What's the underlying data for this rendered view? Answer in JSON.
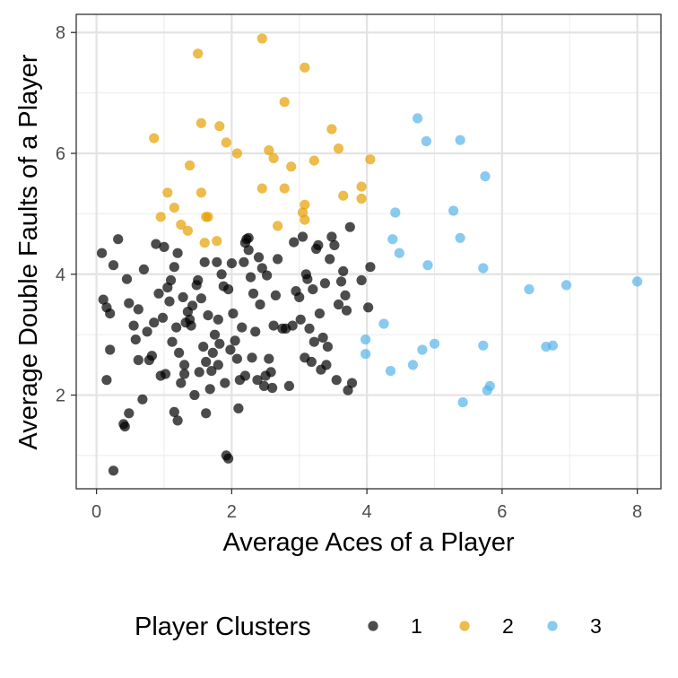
{
  "chart_data": {
    "type": "scatter",
    "title": "",
    "xlabel": "Average Aces of a Player",
    "ylabel": "Average Double Faults of a Player",
    "xlim": [
      -0.3,
      8.35
    ],
    "ylim": [
      0.45,
      8.3
    ],
    "xticks": [
      0,
      2,
      4,
      6,
      8
    ],
    "yticks": [
      2,
      4,
      6,
      8
    ],
    "x_tick_labels": [
      "0",
      "2",
      "4",
      "6",
      "8"
    ],
    "y_tick_labels": [
      "2",
      "4",
      "6",
      "8"
    ],
    "grid": true,
    "legend": {
      "title": "Player Clusters",
      "position": "bottom"
    },
    "series": [
      {
        "name": "1",
        "color": "#000000",
        "points": [
          [
            0.08,
            4.35
          ],
          [
            0.1,
            3.58
          ],
          [
            0.15,
            3.45
          ],
          [
            0.2,
            3.35
          ],
          [
            0.25,
            4.15
          ],
          [
            0.32,
            4.58
          ],
          [
            0.2,
            2.75
          ],
          [
            0.15,
            2.25
          ],
          [
            0.25,
            0.75
          ],
          [
            0.4,
            1.52
          ],
          [
            0.42,
            1.48
          ],
          [
            0.48,
            1.7
          ],
          [
            0.45,
            3.92
          ],
          [
            0.48,
            3.52
          ],
          [
            0.55,
            3.15
          ],
          [
            0.58,
            2.92
          ],
          [
            0.62,
            2.58
          ],
          [
            0.62,
            3.42
          ],
          [
            0.7,
            4.08
          ],
          [
            0.68,
            1.93
          ],
          [
            0.75,
            3.05
          ],
          [
            0.78,
            2.58
          ],
          [
            0.82,
            2.65
          ],
          [
            0.85,
            3.2
          ],
          [
            0.88,
            4.5
          ],
          [
            0.92,
            3.68
          ],
          [
            0.95,
            2.32
          ],
          [
            0.98,
            3.28
          ],
          [
            1.0,
            4.45
          ],
          [
            1.02,
            2.35
          ],
          [
            1.05,
            3.78
          ],
          [
            1.08,
            3.55
          ],
          [
            1.1,
            3.9
          ],
          [
            1.12,
            2.88
          ],
          [
            1.15,
            1.72
          ],
          [
            1.15,
            4.12
          ],
          [
            1.18,
            3.12
          ],
          [
            1.2,
            1.58
          ],
          [
            1.2,
            4.35
          ],
          [
            1.22,
            2.7
          ],
          [
            1.25,
            2.2
          ],
          [
            1.28,
            3.62
          ],
          [
            1.3,
            2.35
          ],
          [
            1.3,
            2.5
          ],
          [
            1.32,
            3.2
          ],
          [
            1.35,
            3.38
          ],
          [
            1.38,
            3.25
          ],
          [
            1.4,
            3.15
          ],
          [
            1.42,
            3.48
          ],
          [
            1.45,
            2.0
          ],
          [
            1.48,
            3.82
          ],
          [
            1.5,
            3.9
          ],
          [
            1.52,
            2.38
          ],
          [
            1.55,
            3.6
          ],
          [
            1.58,
            2.8
          ],
          [
            1.6,
            4.2
          ],
          [
            1.62,
            1.7
          ],
          [
            1.62,
            2.55
          ],
          [
            1.65,
            3.32
          ],
          [
            1.68,
            2.1
          ],
          [
            1.7,
            2.4
          ],
          [
            1.72,
            2.7
          ],
          [
            1.75,
            3.0
          ],
          [
            1.78,
            4.2
          ],
          [
            1.8,
            2.5
          ],
          [
            1.8,
            3.25
          ],
          [
            1.82,
            2.85
          ],
          [
            1.85,
            4.0
          ],
          [
            1.88,
            3.8
          ],
          [
            1.9,
            2.2
          ],
          [
            1.92,
            1.0
          ],
          [
            1.95,
            0.95
          ],
          [
            1.95,
            3.75
          ],
          [
            1.98,
            2.75
          ],
          [
            2.0,
            4.18
          ],
          [
            2.02,
            3.35
          ],
          [
            2.05,
            2.9
          ],
          [
            2.08,
            2.6
          ],
          [
            2.1,
            1.78
          ],
          [
            2.12,
            2.25
          ],
          [
            2.15,
            3.12
          ],
          [
            2.18,
            4.2
          ],
          [
            2.2,
            2.32
          ],
          [
            2.2,
            4.52
          ],
          [
            2.22,
            4.58
          ],
          [
            2.25,
            4.6
          ],
          [
            2.25,
            4.4
          ],
          [
            2.28,
            3.95
          ],
          [
            2.3,
            2.62
          ],
          [
            2.32,
            3.68
          ],
          [
            2.35,
            3.05
          ],
          [
            2.38,
            2.25
          ],
          [
            2.4,
            4.28
          ],
          [
            2.42,
            3.5
          ],
          [
            2.45,
            4.1
          ],
          [
            2.48,
            2.15
          ],
          [
            2.5,
            2.32
          ],
          [
            2.52,
            3.98
          ],
          [
            2.55,
            2.6
          ],
          [
            2.58,
            2.38
          ],
          [
            2.6,
            2.12
          ],
          [
            2.62,
            3.15
          ],
          [
            2.65,
            3.65
          ],
          [
            2.68,
            4.25
          ],
          [
            2.75,
            3.1
          ],
          [
            2.8,
            3.1
          ],
          [
            2.85,
            2.15
          ],
          [
            2.9,
            3.15
          ],
          [
            2.92,
            4.53
          ],
          [
            2.95,
            3.72
          ],
          [
            3.0,
            3.62
          ],
          [
            3.02,
            3.25
          ],
          [
            3.05,
            4.62
          ],
          [
            3.08,
            2.62
          ],
          [
            3.1,
            4.0
          ],
          [
            3.12,
            3.92
          ],
          [
            3.15,
            3.1
          ],
          [
            3.18,
            2.55
          ],
          [
            3.2,
            3.75
          ],
          [
            3.22,
            2.88
          ],
          [
            3.25,
            4.42
          ],
          [
            3.28,
            4.48
          ],
          [
            3.3,
            3.35
          ],
          [
            3.32,
            2.42
          ],
          [
            3.35,
            2.95
          ],
          [
            3.38,
            3.85
          ],
          [
            3.4,
            2.5
          ],
          [
            3.42,
            2.8
          ],
          [
            3.45,
            4.25
          ],
          [
            3.48,
            4.62
          ],
          [
            3.52,
            4.48
          ],
          [
            3.55,
            2.25
          ],
          [
            3.58,
            3.5
          ],
          [
            3.62,
            3.88
          ],
          [
            3.65,
            4.05
          ],
          [
            3.68,
            3.65
          ],
          [
            3.7,
            3.4
          ],
          [
            3.72,
            2.08
          ],
          [
            3.75,
            4.78
          ],
          [
            3.78,
            2.2
          ],
          [
            3.92,
            3.9
          ],
          [
            4.05,
            4.12
          ],
          [
            4.02,
            3.45
          ]
        ]
      },
      {
        "name": "2",
        "color": "#E69F00",
        "points": [
          [
            0.85,
            6.25
          ],
          [
            0.95,
            4.95
          ],
          [
            1.05,
            5.35
          ],
          [
            1.15,
            5.1
          ],
          [
            1.25,
            4.82
          ],
          [
            1.35,
            4.72
          ],
          [
            1.38,
            5.8
          ],
          [
            1.5,
            7.65
          ],
          [
            1.55,
            6.5
          ],
          [
            1.55,
            5.35
          ],
          [
            1.6,
            4.52
          ],
          [
            1.62,
            4.95
          ],
          [
            1.65,
            4.95
          ],
          [
            1.78,
            4.55
          ],
          [
            1.82,
            6.45
          ],
          [
            1.92,
            6.18
          ],
          [
            2.08,
            6.0
          ],
          [
            2.45,
            5.42
          ],
          [
            2.45,
            7.9
          ],
          [
            2.55,
            6.05
          ],
          [
            2.62,
            5.92
          ],
          [
            2.68,
            4.8
          ],
          [
            2.78,
            6.85
          ],
          [
            2.78,
            5.42
          ],
          [
            2.88,
            5.78
          ],
          [
            3.05,
            5.02
          ],
          [
            3.08,
            4.9
          ],
          [
            3.08,
            5.15
          ],
          [
            3.08,
            7.42
          ],
          [
            3.22,
            5.88
          ],
          [
            3.48,
            6.4
          ],
          [
            3.58,
            6.08
          ],
          [
            3.65,
            5.3
          ],
          [
            3.92,
            5.25
          ],
          [
            3.92,
            5.45
          ],
          [
            4.05,
            5.9
          ]
        ]
      },
      {
        "name": "3",
        "color": "#56B4E9",
        "points": [
          [
            3.98,
            2.92
          ],
          [
            3.98,
            2.68
          ],
          [
            4.25,
            3.18
          ],
          [
            4.35,
            2.4
          ],
          [
            4.38,
            4.58
          ],
          [
            4.42,
            5.02
          ],
          [
            4.48,
            4.35
          ],
          [
            4.68,
            2.5
          ],
          [
            4.75,
            6.58
          ],
          [
            4.82,
            2.75
          ],
          [
            4.88,
            6.2
          ],
          [
            4.9,
            4.15
          ],
          [
            5.0,
            2.85
          ],
          [
            5.28,
            5.05
          ],
          [
            5.38,
            4.6
          ],
          [
            5.38,
            6.22
          ],
          [
            5.42,
            1.88
          ],
          [
            5.72,
            2.82
          ],
          [
            5.72,
            4.1
          ],
          [
            5.75,
            5.62
          ],
          [
            5.78,
            2.08
          ],
          [
            5.82,
            2.15
          ],
          [
            6.4,
            3.75
          ],
          [
            6.65,
            2.8
          ],
          [
            6.75,
            2.82
          ],
          [
            6.95,
            3.82
          ],
          [
            8.0,
            3.88
          ]
        ]
      }
    ]
  }
}
